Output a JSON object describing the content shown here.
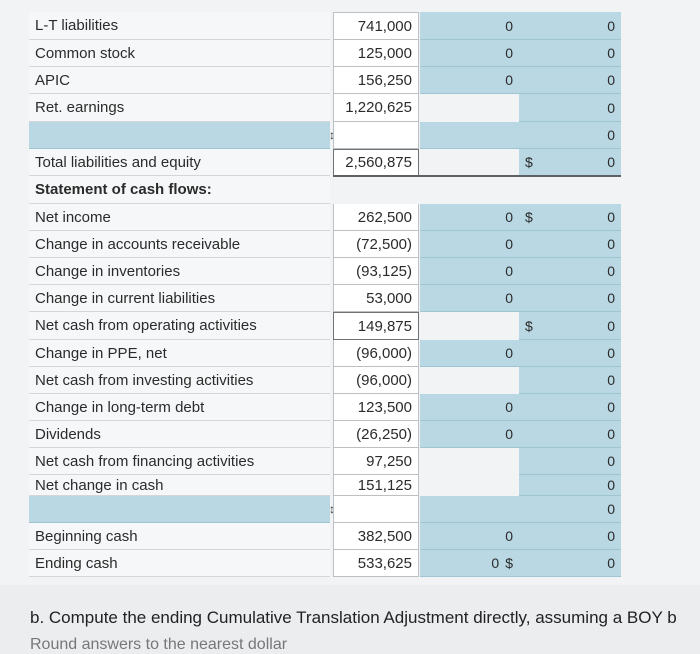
{
  "rows": [
    {
      "label": "L-T liabilities",
      "value": "741,000",
      "c3": "0",
      "c4": "0",
      "c3dollar": "",
      "c4dollar": ""
    },
    {
      "label": "Common stock",
      "value": "125,000",
      "c3": "0",
      "c4": "0",
      "c3dollar": "",
      "c4dollar": ""
    },
    {
      "label": "APIC",
      "value": "156,250",
      "c3": "0",
      "c4": "0",
      "c3dollar": "",
      "c4dollar": ""
    },
    {
      "label": "Ret. earnings",
      "value": "1,220,625",
      "c3": "",
      "c4": "0",
      "c3dollar": "",
      "c4dollar": ""
    },
    {
      "label": "",
      "value": "",
      "c3": "",
      "c4": "0",
      "c3dollar": "",
      "c4dollar": "",
      "selector": "↕"
    },
    {
      "label": "Total liabilities and equity",
      "value": "2,560,875",
      "c3": "",
      "c4": "0",
      "c3dollar": "",
      "c4dollar": "$"
    },
    {
      "label": "Statement of cash flows:",
      "value": "",
      "c3": "",
      "c4": "",
      "c3dollar": "",
      "c4dollar": ""
    },
    {
      "label": "Net income",
      "value": "262,500",
      "c3": "0",
      "c4": "0",
      "c3dollar": "",
      "c4dollar": "$"
    },
    {
      "label": "Change in accounts receivable",
      "value": "(72,500)",
      "c3": "0",
      "c4": "0",
      "c3dollar": "",
      "c4dollar": ""
    },
    {
      "label": "Change in inventories",
      "value": "(93,125)",
      "c3": "0",
      "c4": "0",
      "c3dollar": "",
      "c4dollar": ""
    },
    {
      "label": "Change in current liabilities",
      "value": "53,000",
      "c3": "0",
      "c4": "0",
      "c3dollar": "",
      "c4dollar": ""
    },
    {
      "label": "Net cash from operating activities",
      "value": "149,875",
      "c3": "",
      "c4": "0",
      "c3dollar": "",
      "c4dollar": "$"
    },
    {
      "label": "Change in PPE, net",
      "value": "(96,000)",
      "c3": "0",
      "c4": "0",
      "c3dollar": "",
      "c4dollar": ""
    },
    {
      "label": "Net cash from investing activities",
      "value": "(96,000)",
      "c3": "",
      "c4": "0",
      "c3dollar": "",
      "c4dollar": ""
    },
    {
      "label": "Change in long-term debt",
      "value": "123,500",
      "c3": "0",
      "c4": "0",
      "c3dollar": "",
      "c4dollar": ""
    },
    {
      "label": "Dividends",
      "value": "(26,250)",
      "c3": "0",
      "c4": "0",
      "c3dollar": "",
      "c4dollar": ""
    },
    {
      "label": "Net cash from financing activities",
      "value": "97,250",
      "c3": "",
      "c4": "0",
      "c3dollar": "",
      "c4dollar": ""
    },
    {
      "label": "Net change in cash",
      "value": "151,125",
      "c3": "",
      "c4": "0",
      "c3dollar": "",
      "c4dollar": ""
    },
    {
      "label": "",
      "value": "",
      "c3": "",
      "c4": "0",
      "c3dollar": "",
      "c4dollar": "",
      "selector": "↕"
    },
    {
      "label": "Beginning cash",
      "value": "382,500",
      "c3": "0",
      "c4": "0",
      "c3dollar": "",
      "c4dollar": ""
    },
    {
      "label": "Ending cash",
      "value": "533,625",
      "c3": "0",
      "c4": "0",
      "c3dollar": "$",
      "c4dollar": ""
    }
  ],
  "footer": {
    "question": "b. Compute the ending Cumulative Translation Adjustment directly, assuming a BOY b",
    "note": "Round answers to the nearest dollar"
  }
}
